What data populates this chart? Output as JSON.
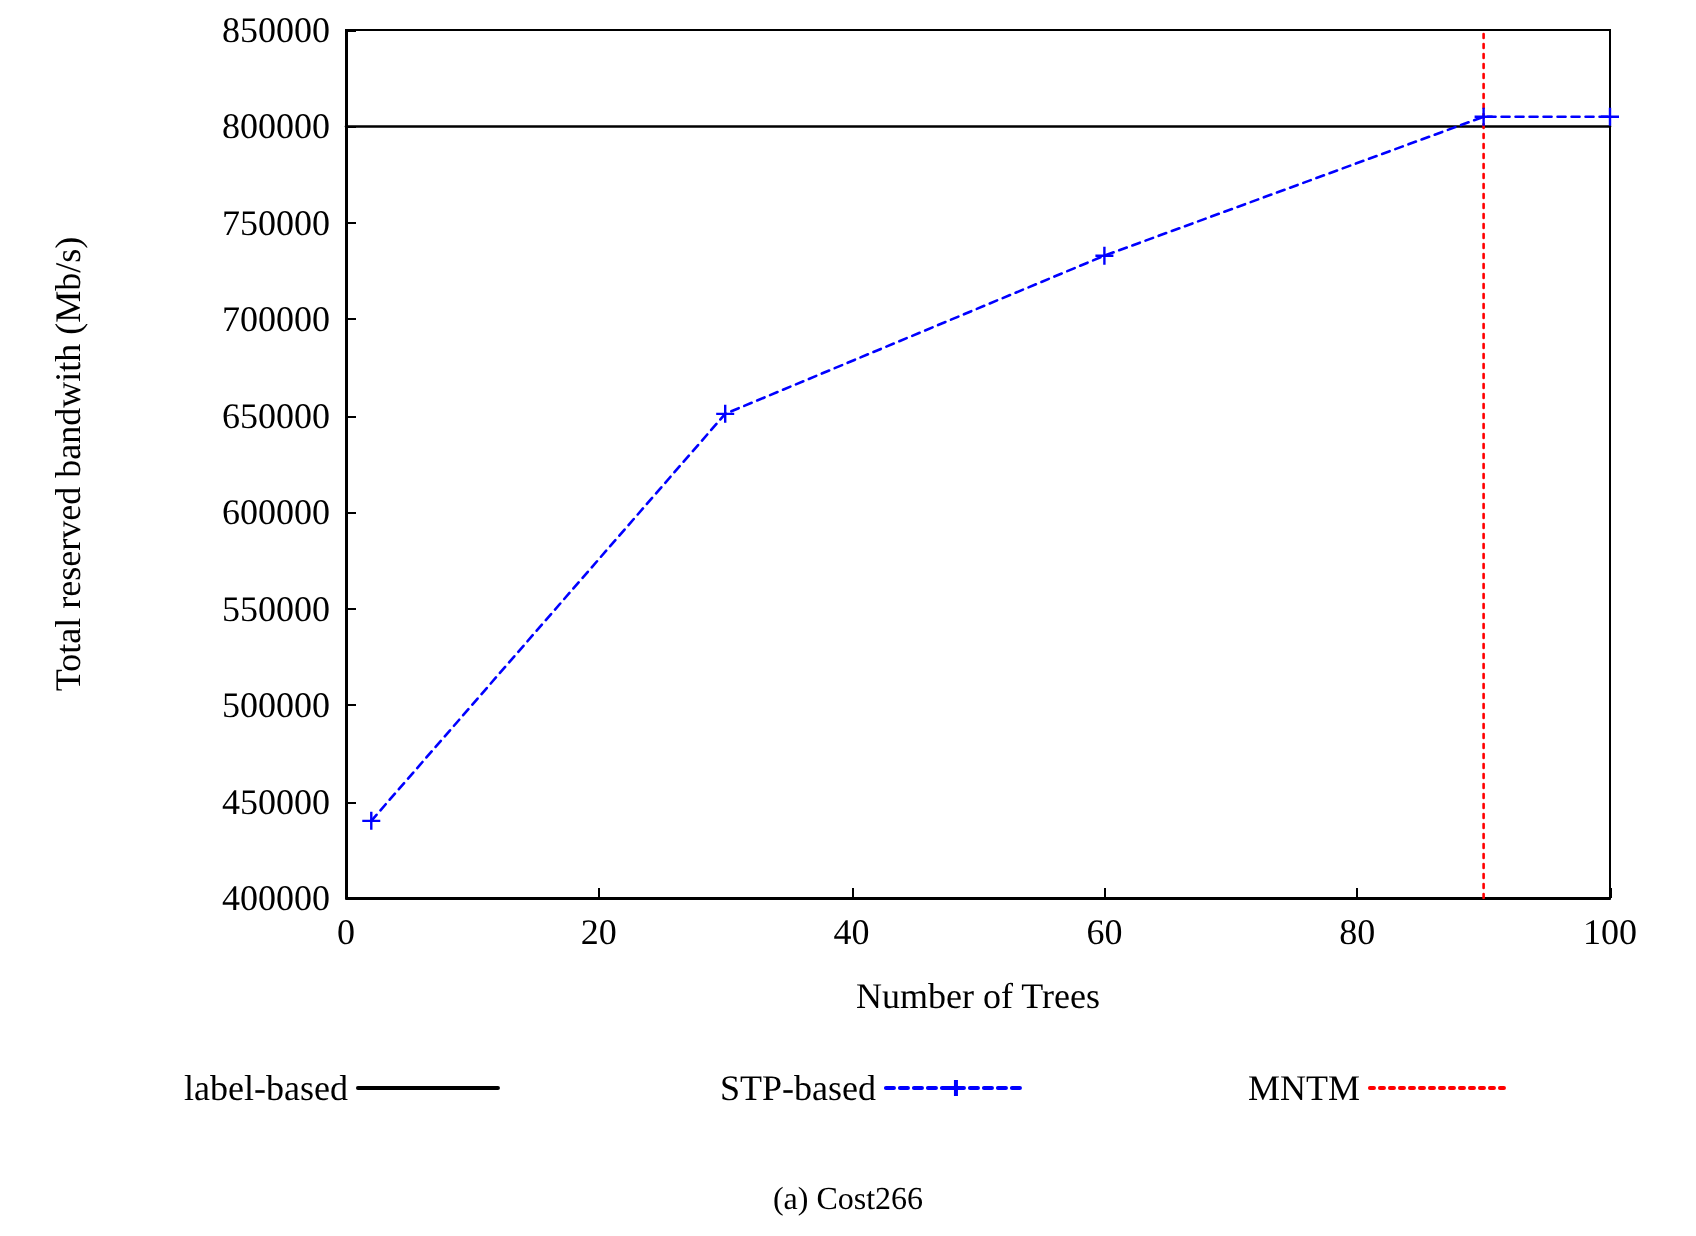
{
  "chart_data": {
    "type": "line",
    "xlabel": "Number of Trees",
    "ylabel": "Total reserved bandwith (Mb/s)",
    "annotations": [
      "(a) Cost266"
    ],
    "xlim": [
      0,
      100
    ],
    "xticks": [
      0,
      20,
      40,
      60,
      80,
      100
    ],
    "ylim": [
      400000,
      850000
    ],
    "yticks": [
      400000,
      450000,
      500000,
      550000,
      600000,
      650000,
      700000,
      750000,
      800000,
      850000
    ],
    "grid": false,
    "legend": "bottom",
    "series": [
      {
        "name": "label-based",
        "color": "#000000",
        "x": [
          0,
          100
        ],
        "values": [
          800000,
          800000
        ],
        "marker": "none",
        "line_style": "solid"
      },
      {
        "name": "STP-based",
        "color": "#0000ff",
        "x": [
          2,
          30,
          60,
          90,
          100
        ],
        "values": [
          440000,
          651000,
          733000,
          805000,
          805000
        ],
        "marker": "cross",
        "line_style": "dashed"
      },
      {
        "name": "MNTM",
        "color": "#ff0000",
        "x": [
          90,
          90
        ],
        "values": [
          400000,
          850000
        ],
        "marker": "none",
        "line_style": "dotted"
      }
    ]
  }
}
